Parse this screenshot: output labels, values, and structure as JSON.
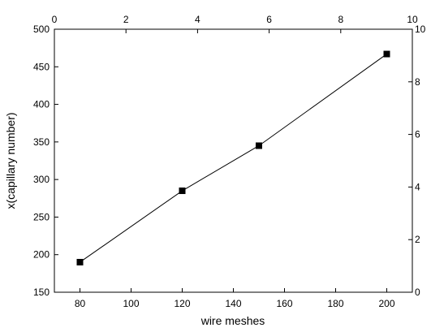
{
  "chart_data": {
    "type": "line",
    "title": "",
    "xlabel": "wire meshes",
    "ylabel": "x(capillary number)",
    "xlim": [
      70,
      210
    ],
    "ylim": [
      150,
      500
    ],
    "xticks": [
      80,
      100,
      120,
      140,
      160,
      180,
      200
    ],
    "yticks": [
      150,
      200,
      250,
      300,
      350,
      400,
      450,
      500
    ],
    "top_axis": {
      "lim": [
        0,
        10
      ],
      "ticks": [
        0,
        2,
        4,
        6,
        8,
        10
      ]
    },
    "right_axis": {
      "lim": [
        0,
        10
      ],
      "ticks": [
        0,
        2,
        4,
        6,
        8,
        10
      ]
    },
    "grid": false,
    "legend": "none",
    "series": [
      {
        "marker": "square",
        "color": "#000000",
        "x": [
          80,
          120,
          150,
          200
        ],
        "y": [
          190,
          285,
          345,
          467
        ]
      }
    ]
  }
}
